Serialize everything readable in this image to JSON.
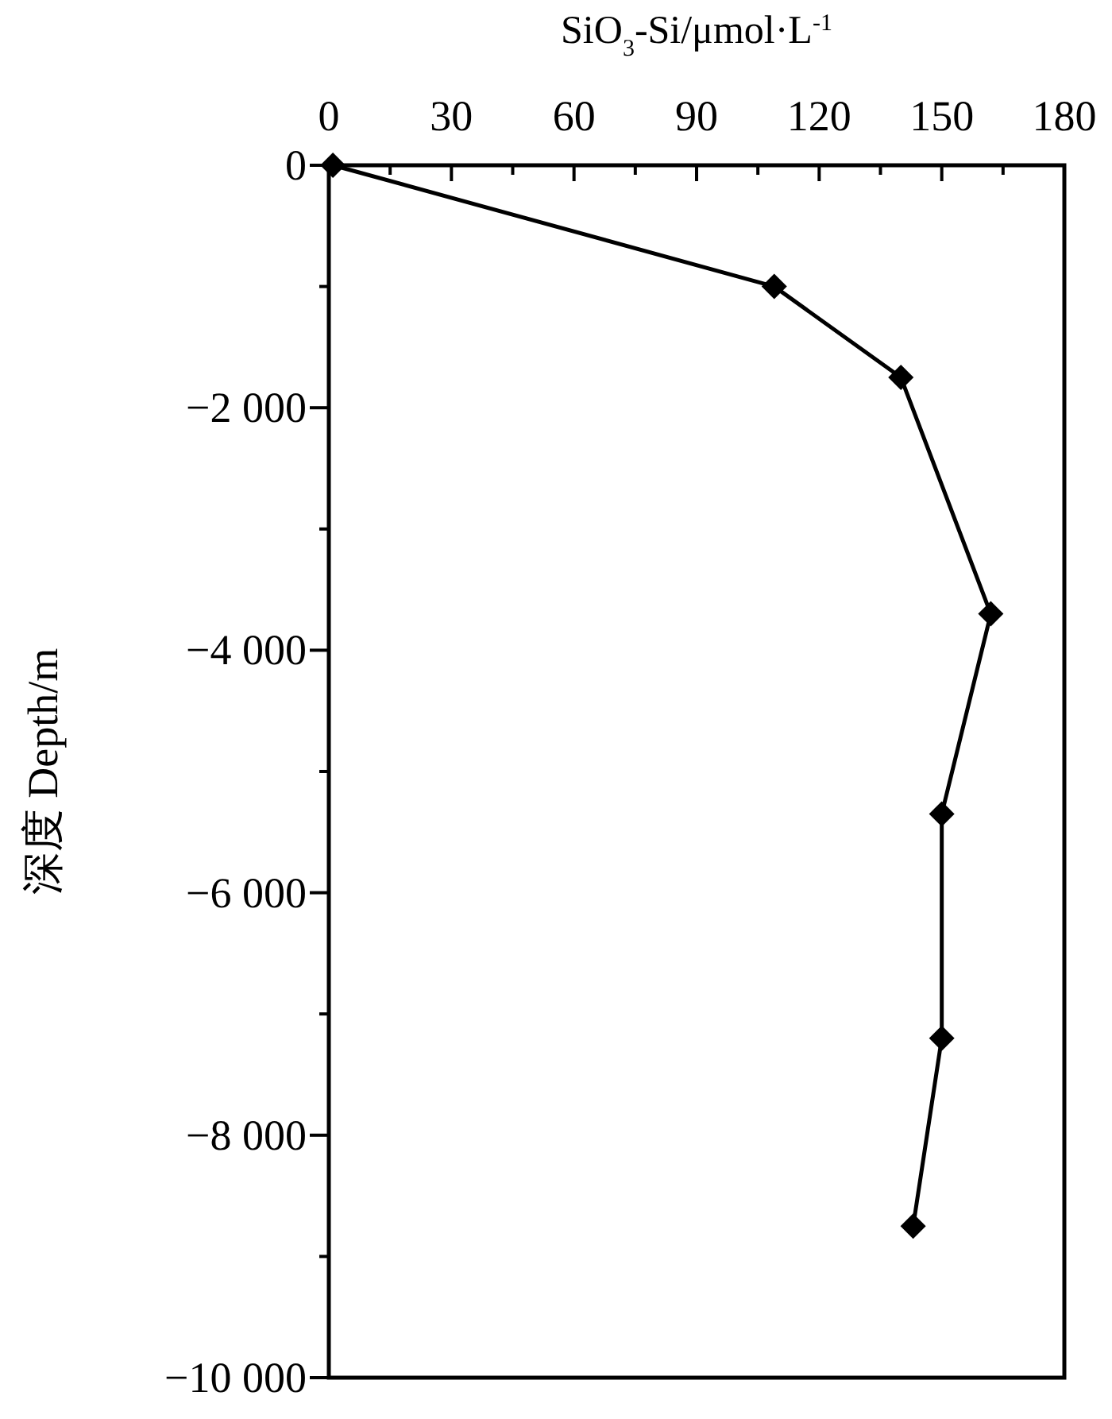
{
  "chart_data": {
    "type": "line",
    "xlabel": "SiO$_{3}$-Si/μmol·L$^{-1}$",
    "ylabel": "深度 Depth/m",
    "x": [
      1,
      109,
      140,
      162,
      150,
      150,
      143
    ],
    "values": [
      0,
      -1000,
      -1750,
      -3700,
      -5350,
      -7200,
      -8750
    ],
    "color": "#000000",
    "marker": "diamond",
    "line_style": "solid",
    "grid": false,
    "xlim": [
      0,
      180
    ],
    "xticks": [
      0,
      {
        "value": 15,
        "label": null
      },
      30,
      {
        "value": 45,
        "label": null
      },
      60,
      {
        "value": 75,
        "label": null
      },
      90,
      {
        "value": 105,
        "label": null
      },
      120,
      {
        "value": 135,
        "label": null
      },
      150,
      {
        "value": 165,
        "label": null
      },
      180
    ],
    "ylim": [
      -10000,
      0
    ],
    "yticks": [
      0,
      {
        "value": -1000,
        "label": null
      },
      {
        "value": -2000,
        "label": "−2 000"
      },
      {
        "value": -3000,
        "label": null
      },
      {
        "value": -4000,
        "label": "−4 000"
      },
      {
        "value": -5000,
        "label": null
      },
      {
        "value": -6000,
        "label": "−6 000"
      },
      {
        "value": -7000,
        "label": null
      },
      {
        "value": -8000,
        "label": "−8 000"
      },
      {
        "value": -9000,
        "label": null
      },
      {
        "value": -10000,
        "label": "−10 000"
      }
    ]
  }
}
